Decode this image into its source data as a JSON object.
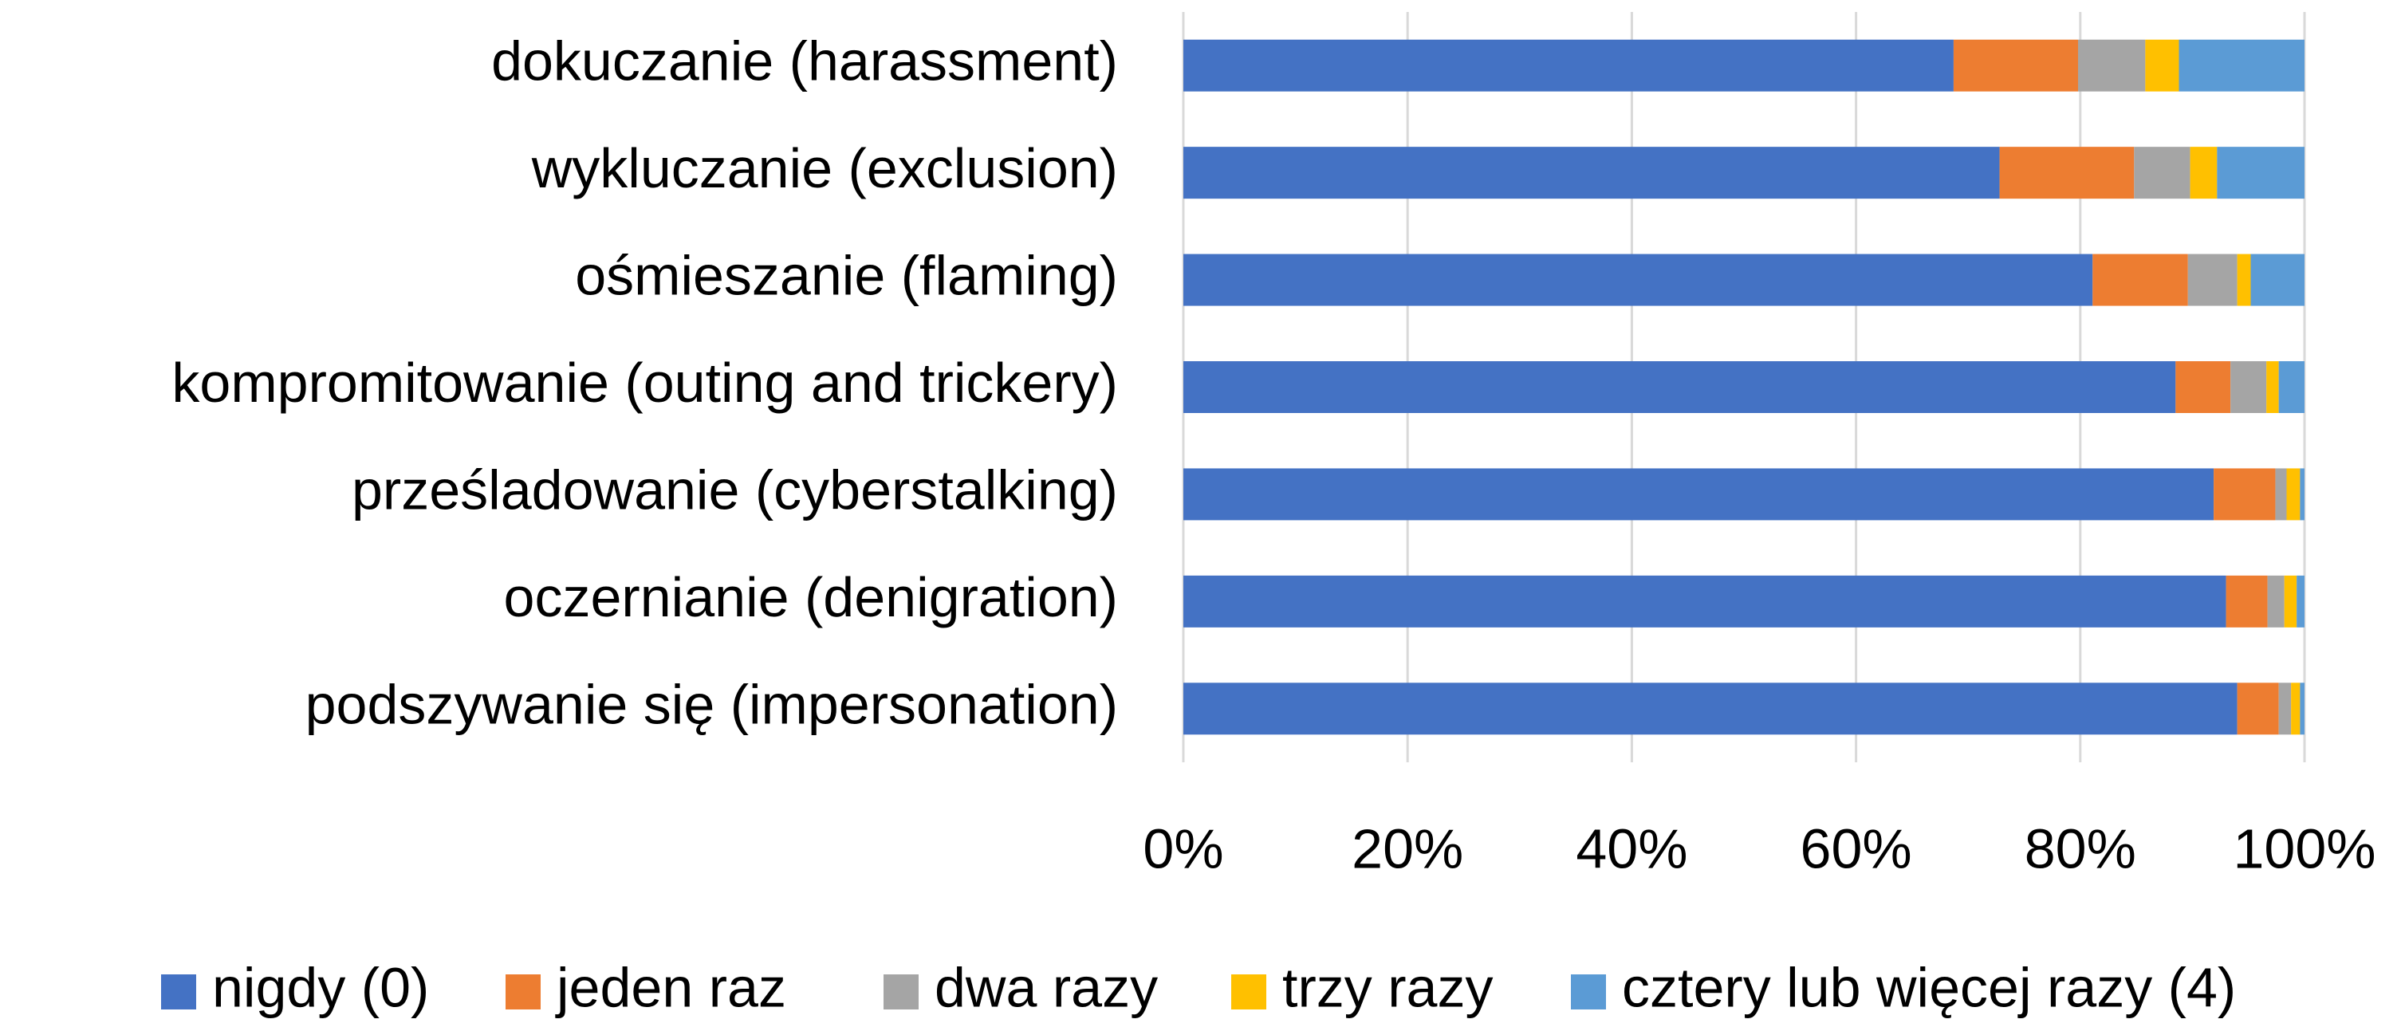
{
  "chart_data": {
    "type": "stacked-bar-horizontal",
    "categories": [
      "dokuczanie (harassment)",
      "wykluczanie (exclusion)",
      "ośmieszanie (flaming)",
      "kompromitowanie (outing and trickery)",
      "prześladowanie (cyberstalking)",
      "oczernianie (denigration)",
      "podszywanie się (impersonation)"
    ],
    "series": [
      {
        "name": "nigdy (0)",
        "color": "#4472c4",
        "values": [
          68.7,
          72.8,
          81.1,
          88.5,
          91.9,
          93.0,
          94.0
        ]
      },
      {
        "name": "jeden raz",
        "color": "#ed7d31",
        "values": [
          11.1,
          12.0,
          8.5,
          4.9,
          5.5,
          3.7,
          3.7
        ]
      },
      {
        "name": "dwa razy",
        "color": "#a5a5a5",
        "values": [
          6.0,
          5.0,
          4.4,
          3.2,
          1.0,
          1.5,
          1.1
        ]
      },
      {
        "name": "trzy razy",
        "color": "#ffc000",
        "values": [
          3.0,
          2.4,
          1.2,
          1.1,
          1.2,
          1.1,
          0.8
        ]
      },
      {
        "name": "cztery lub więcej razy (4)",
        "color": "#5b9bd5",
        "values": [
          11.2,
          7.8,
          4.8,
          2.3,
          0.4,
          0.7,
          0.4
        ]
      }
    ],
    "xlim": [
      0,
      100
    ],
    "xticks": [
      {
        "value": 0,
        "label": "0%"
      },
      {
        "value": 20,
        "label": "20%"
      },
      {
        "value": 40,
        "label": "40%"
      },
      {
        "value": 60,
        "label": "60%"
      },
      {
        "value": 80,
        "label": "80%"
      },
      {
        "value": 100,
        "label": "100%"
      }
    ],
    "grid": true,
    "legend": "bottom"
  }
}
